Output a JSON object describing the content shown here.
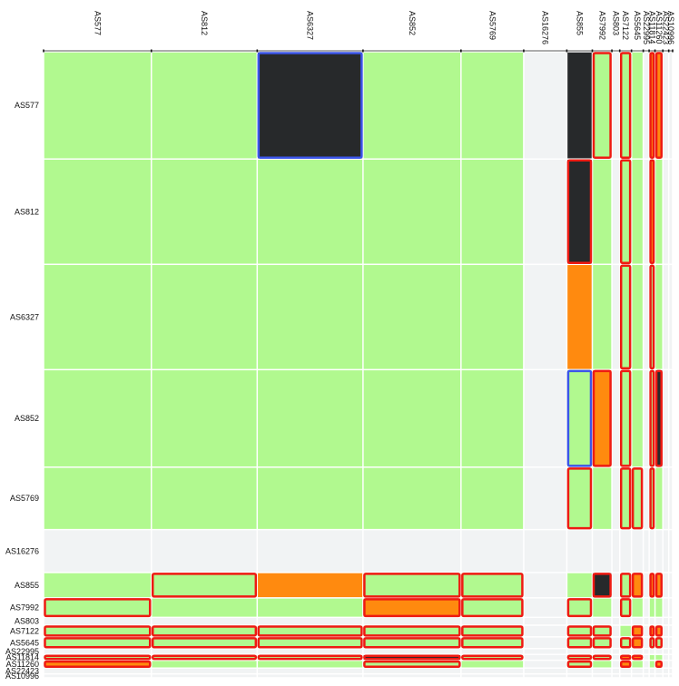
{
  "chart_data": {
    "type": "heatmap",
    "title": "",
    "xlabel": "",
    "ylabel": "",
    "labels": [
      "AS577",
      "AS812",
      "AS6327",
      "AS852",
      "AS5769",
      "AS16276",
      "AS855",
      "AS7992",
      "AS803",
      "AS7122",
      "AS5645",
      "AS22995",
      "AS11814",
      "AS11260",
      "AS22423",
      "AS10996"
    ],
    "relative_sizes": [
      55,
      54,
      54,
      50,
      32,
      22,
      13,
      10,
      4,
      6,
      6,
      3,
      3,
      4,
      3,
      2
    ],
    "cell_colors": {
      "empty": "#f1f3f4",
      "green": "#b1f98f",
      "orange": "#ff8a0f",
      "dark": "#27292b"
    },
    "outline_colors": {
      "red": "#ee1a12",
      "blue": "#3b55e8"
    },
    "empty_rows_cols": [
      "AS16276",
      "AS803",
      "AS22995",
      "AS22423",
      "AS10996"
    ],
    "special_cells": [
      {
        "row": "AS577",
        "col": "AS6327",
        "fill": "dark",
        "outline": "blue"
      },
      {
        "row": "AS577",
        "col": "AS855",
        "fill": "dark",
        "outline": "none"
      },
      {
        "row": "AS577",
        "col": "AS7992",
        "fill": "green",
        "outline": "red"
      },
      {
        "row": "AS577",
        "col": "AS7122",
        "fill": "green",
        "outline": "red"
      },
      {
        "row": "AS577",
        "col": "AS11814",
        "fill": "orange",
        "outline": "red"
      },
      {
        "row": "AS577",
        "col": "AS11260",
        "fill": "orange",
        "outline": "red"
      },
      {
        "row": "AS812",
        "col": "AS855",
        "fill": "dark",
        "outline": "red"
      },
      {
        "row": "AS812",
        "col": "AS7122",
        "fill": "green",
        "outline": "red"
      },
      {
        "row": "AS812",
        "col": "AS11814",
        "fill": "orange",
        "outline": "red"
      },
      {
        "row": "AS6327",
        "col": "AS855",
        "fill": "orange",
        "outline": "none"
      },
      {
        "row": "AS6327",
        "col": "AS7122",
        "fill": "green",
        "outline": "red"
      },
      {
        "row": "AS6327",
        "col": "AS11814",
        "fill": "green",
        "outline": "red"
      },
      {
        "row": "AS852",
        "col": "AS855",
        "fill": "green",
        "outline": "blue"
      },
      {
        "row": "AS852",
        "col": "AS7992",
        "fill": "orange",
        "outline": "red"
      },
      {
        "row": "AS852",
        "col": "AS7122",
        "fill": "green",
        "outline": "red"
      },
      {
        "row": "AS852",
        "col": "AS11814",
        "fill": "green",
        "outline": "red"
      },
      {
        "row": "AS852",
        "col": "AS11260",
        "fill": "dark",
        "outline": "red"
      },
      {
        "row": "AS5769",
        "col": "AS855",
        "fill": "green",
        "outline": "red"
      },
      {
        "row": "AS5769",
        "col": "AS7122",
        "fill": "green",
        "outline": "red"
      },
      {
        "row": "AS5769",
        "col": "AS5645",
        "fill": "green",
        "outline": "red"
      },
      {
        "row": "AS5769",
        "col": "AS11814",
        "fill": "green",
        "outline": "red"
      },
      {
        "row": "AS855",
        "col": "AS812",
        "fill": "green",
        "outline": "red"
      },
      {
        "row": "AS855",
        "col": "AS6327",
        "fill": "orange",
        "outline": "none"
      },
      {
        "row": "AS855",
        "col": "AS852",
        "fill": "green",
        "outline": "red"
      },
      {
        "row": "AS855",
        "col": "AS5769",
        "fill": "green",
        "outline": "red"
      },
      {
        "row": "AS855",
        "col": "AS7992",
        "fill": "dark",
        "outline": "red"
      },
      {
        "row": "AS855",
        "col": "AS7122",
        "fill": "green",
        "outline": "red"
      },
      {
        "row": "AS855",
        "col": "AS5645",
        "fill": "orange",
        "outline": "red"
      },
      {
        "row": "AS855",
        "col": "AS11814",
        "fill": "orange",
        "outline": "red"
      },
      {
        "row": "AS855",
        "col": "AS11260",
        "fill": "orange",
        "outline": "red"
      },
      {
        "row": "AS7992",
        "col": "AS577",
        "fill": "green",
        "outline": "red"
      },
      {
        "row": "AS7992",
        "col": "AS852",
        "fill": "orange",
        "outline": "red"
      },
      {
        "row": "AS7992",
        "col": "AS5769",
        "fill": "green",
        "outline": "red"
      },
      {
        "row": "AS7992",
        "col": "AS855",
        "fill": "green",
        "outline": "red"
      },
      {
        "row": "AS7992",
        "col": "AS7122",
        "fill": "green",
        "outline": "red"
      },
      {
        "row": "AS7122",
        "col": "AS577",
        "fill": "green",
        "outline": "red"
      },
      {
        "row": "AS7122",
        "col": "AS812",
        "fill": "green",
        "outline": "red"
      },
      {
        "row": "AS7122",
        "col": "AS6327",
        "fill": "green",
        "outline": "red"
      },
      {
        "row": "AS7122",
        "col": "AS852",
        "fill": "green",
        "outline": "red"
      },
      {
        "row": "AS7122",
        "col": "AS5769",
        "fill": "green",
        "outline": "red"
      },
      {
        "row": "AS7122",
        "col": "AS855",
        "fill": "green",
        "outline": "red"
      },
      {
        "row": "AS7122",
        "col": "AS7992",
        "fill": "green",
        "outline": "red"
      },
      {
        "row": "AS7122",
        "col": "AS5645",
        "fill": "orange",
        "outline": "red"
      },
      {
        "row": "AS7122",
        "col": "AS11814",
        "fill": "orange",
        "outline": "red"
      },
      {
        "row": "AS7122",
        "col": "AS11260",
        "fill": "orange",
        "outline": "red"
      },
      {
        "row": "AS5645",
        "col": "AS577",
        "fill": "green",
        "outline": "red"
      },
      {
        "row": "AS5645",
        "col": "AS812",
        "fill": "green",
        "outline": "red"
      },
      {
        "row": "AS5645",
        "col": "AS6327",
        "fill": "green",
        "outline": "red"
      },
      {
        "row": "AS5645",
        "col": "AS852",
        "fill": "green",
        "outline": "red"
      },
      {
        "row": "AS5645",
        "col": "AS5769",
        "fill": "green",
        "outline": "red"
      },
      {
        "row": "AS5645",
        "col": "AS855",
        "fill": "green",
        "outline": "red"
      },
      {
        "row": "AS5645",
        "col": "AS7992",
        "fill": "green",
        "outline": "red"
      },
      {
        "row": "AS5645",
        "col": "AS7122",
        "fill": "green",
        "outline": "red"
      },
      {
        "row": "AS5645",
        "col": "AS5645",
        "fill": "orange",
        "outline": "red"
      },
      {
        "row": "AS5645",
        "col": "AS11814",
        "fill": "green",
        "outline": "red"
      },
      {
        "row": "AS5645",
        "col": "AS11260",
        "fill": "green",
        "outline": "red"
      },
      {
        "row": "AS11814",
        "col": "AS577",
        "fill": "green",
        "outline": "red"
      },
      {
        "row": "AS11814",
        "col": "AS812",
        "fill": "green",
        "outline": "red"
      },
      {
        "row": "AS11814",
        "col": "AS6327",
        "fill": "green",
        "outline": "red"
      },
      {
        "row": "AS11814",
        "col": "AS852",
        "fill": "dark",
        "outline": "red"
      },
      {
        "row": "AS11814",
        "col": "AS5769",
        "fill": "green",
        "outline": "red"
      },
      {
        "row": "AS11814",
        "col": "AS855",
        "fill": "green",
        "outline": "red"
      },
      {
        "row": "AS11814",
        "col": "AS7992",
        "fill": "green",
        "outline": "red"
      },
      {
        "row": "AS11814",
        "col": "AS7122",
        "fill": "orange",
        "outline": "red"
      },
      {
        "row": "AS11814",
        "col": "AS5645",
        "fill": "orange",
        "outline": "red"
      },
      {
        "row": "AS11260",
        "col": "AS577",
        "fill": "orange",
        "outline": "red"
      },
      {
        "row": "AS11260",
        "col": "AS812",
        "fill": "green",
        "outline": "none"
      },
      {
        "row": "AS11260",
        "col": "AS6327",
        "fill": "green",
        "outline": "none"
      },
      {
        "row": "AS11260",
        "col": "AS852",
        "fill": "green",
        "outline": "red"
      },
      {
        "row": "AS11260",
        "col": "AS855",
        "fill": "green",
        "outline": "red"
      },
      {
        "row": "AS11260",
        "col": "AS7122",
        "fill": "orange",
        "outline": "red"
      },
      {
        "row": "AS11260",
        "col": "AS11260",
        "fill": "orange",
        "outline": "red"
      }
    ],
    "grid": true,
    "legend": "none"
  }
}
